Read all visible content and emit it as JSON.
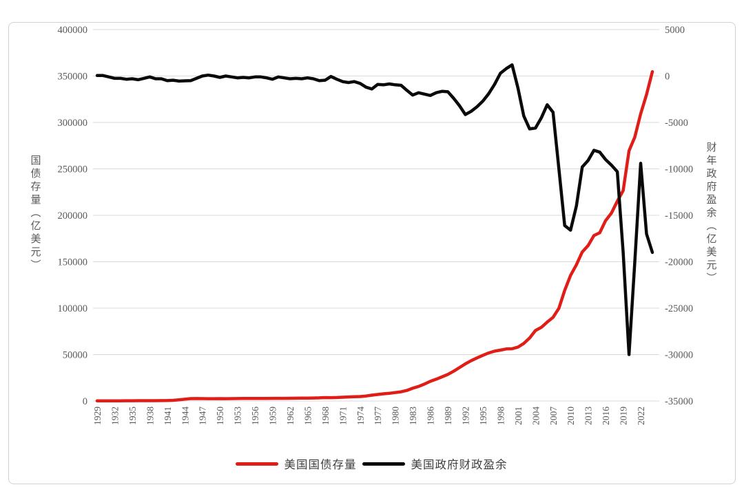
{
  "chart": {
    "title": "",
    "left_axis": {
      "title": "国债存量（亿美元）",
      "tick_labels": [
        "400000",
        "350000",
        "300000",
        "250000",
        "200000",
        "150000",
        "100000",
        "50000",
        "0"
      ],
      "min": 0,
      "max": 400000
    },
    "right_axis": {
      "title": "财年政府盈余（亿美元）",
      "tick_labels": [
        "5000",
        "0",
        "-5000",
        "-10000",
        "-15000",
        "-20000",
        "-25000",
        "-30000",
        "-35000"
      ],
      "min": -35000,
      "max": 5000
    },
    "x_axis": {
      "tick_labels": [
        "1929",
        "1932",
        "1935",
        "1938",
        "1941",
        "1944",
        "1947",
        "1950",
        "1953",
        "1956",
        "1959",
        "1962",
        "1965",
        "1968",
        "1971",
        "1974",
        "1977",
        "1980",
        "1983",
        "1986",
        "1989",
        "1992",
        "1995",
        "1998",
        "2001",
        "2004",
        "2007",
        "2010",
        "2013",
        "2016",
        "2019",
        "2022"
      ],
      "first_year": 1929,
      "last_year": 2024,
      "tick_step_years": 3
    },
    "legend": [
      {
        "label": "美国国债存量",
        "color": "#e01d17"
      },
      {
        "label": "美国政府财政盈余",
        "color": "#0a0a0a"
      }
    ],
    "colors": {
      "gridline": "#d9d9d9",
      "tick_text": "#595959",
      "debt_line": "#e01d17",
      "surplus_line": "#0a0a0a"
    }
  },
  "chart_data": {
    "type": "line",
    "title": "",
    "grid": "horizontal",
    "legend_position": "bottom",
    "left_ylim": [
      0,
      400000
    ],
    "right_ylim": [
      -35000,
      5000
    ],
    "x": [
      1929,
      1930,
      1931,
      1932,
      1933,
      1934,
      1935,
      1936,
      1937,
      1938,
      1939,
      1940,
      1941,
      1942,
      1943,
      1944,
      1945,
      1946,
      1947,
      1948,
      1949,
      1950,
      1951,
      1952,
      1953,
      1954,
      1955,
      1956,
      1957,
      1958,
      1959,
      1960,
      1961,
      1962,
      1963,
      1964,
      1965,
      1966,
      1967,
      1968,
      1969,
      1970,
      1971,
      1972,
      1973,
      1974,
      1975,
      1976,
      1977,
      1978,
      1979,
      1980,
      1981,
      1982,
      1983,
      1984,
      1985,
      1986,
      1987,
      1988,
      1989,
      1990,
      1991,
      1992,
      1993,
      1994,
      1995,
      1996,
      1997,
      1998,
      1999,
      2000,
      2001,
      2002,
      2003,
      2004,
      2005,
      2006,
      2007,
      2008,
      2009,
      2010,
      2011,
      2012,
      2013,
      2014,
      2015,
      2016,
      2017,
      2018,
      2019,
      2020,
      2021,
      2022,
      2023,
      2024
    ],
    "series": [
      {
        "name": "美国国债存量",
        "axis": "left",
        "color": "#e01d17",
        "values": [
          169,
          161,
          169,
          195,
          229,
          270,
          289,
          336,
          364,
          371,
          404,
          430,
          490,
          724,
          1367,
          2011,
          2602,
          2695,
          2583,
          2522,
          2526,
          2569,
          2553,
          2592,
          2660,
          2707,
          2742,
          2727,
          2723,
          2794,
          2876,
          2863,
          2890,
          2983,
          3058,
          3118,
          3173,
          3289,
          3405,
          3689,
          3658,
          3809,
          4083,
          4358,
          4662,
          4839,
          5413,
          6290,
          7060,
          7764,
          8290,
          9090,
          9946,
          11420,
          13772,
          15722,
          18234,
          21202,
          23459,
          26017,
          28681,
          32062,
          35992,
          40017,
          43512,
          46436,
          49207,
          51814,
          53691,
          54784,
          56056,
          56287,
          58074,
          61983,
          67832,
          75962,
          79329,
          84970,
          90076,
          99860,
          119098,
          135287,
          146764,
          160510,
          167383,
          178243,
          181205,
          194273,
          202445,
          215162,
          226691,
          269450,
          284287,
          309286,
          330000,
          354640
        ]
      },
      {
        "name": "美国政府财政盈余",
        "axis": "right",
        "color": "#0a0a0a",
        "values": [
          50,
          50,
          -100,
          -250,
          -250,
          -350,
          -300,
          -400,
          -250,
          -100,
          -300,
          -300,
          -500,
          -450,
          -550,
          -520,
          -500,
          -250,
          0,
          100,
          0,
          -150,
          0,
          -100,
          -200,
          -150,
          -200,
          -100,
          -100,
          -200,
          -350,
          -100,
          -200,
          -300,
          -250,
          -300,
          -200,
          -300,
          -500,
          -450,
          -50,
          -350,
          -600,
          -700,
          -600,
          -800,
          -1200,
          -1400,
          -900,
          -950,
          -850,
          -950,
          -1000,
          -1550,
          -2050,
          -1800,
          -1950,
          -2100,
          -1800,
          -1650,
          -1700,
          -2400,
          -3200,
          -4150,
          -3800,
          -3300,
          -2700,
          -1900,
          -900,
          300,
          800,
          1200,
          -1300,
          -4300,
          -5700,
          -5600,
          -4500,
          -3100,
          -3900,
          -10000,
          -16100,
          -16600,
          -14000,
          -9800,
          -9100,
          -8000,
          -8200,
          -9000,
          -9600,
          -10300,
          -19000,
          -30000,
          -20000,
          -9400,
          -17000,
          -19000
        ]
      }
    ]
  }
}
